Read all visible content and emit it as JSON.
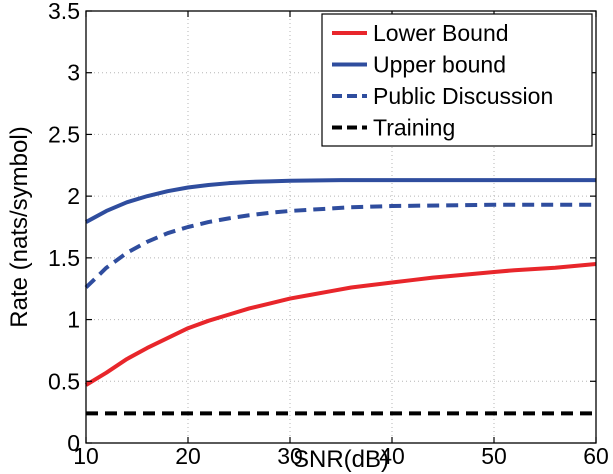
{
  "chart_data": {
    "type": "line",
    "xlabel": "SNR(dB)",
    "ylabel": "Rate (nats/symbol)",
    "xlim": [
      10,
      60
    ],
    "ylim": [
      0,
      3.5
    ],
    "xticks": [
      10,
      20,
      30,
      40,
      50,
      60
    ],
    "yticks": [
      0,
      0.5,
      1,
      1.5,
      2,
      2.5,
      3,
      3.5
    ],
    "xtick_labels": [
      "10",
      "20",
      "30",
      "40",
      "50",
      "60"
    ],
    "ytick_labels": [
      "0",
      "0.5",
      "1",
      "1.5",
      "2",
      "2.5",
      "3",
      "3.5"
    ],
    "grid": true,
    "legend_position": "top-right",
    "series": [
      {
        "name": "Lower Bound",
        "color": "#e8262b",
        "style": "solid",
        "x": [
          10,
          12,
          14,
          16,
          18,
          20,
          22,
          24,
          26,
          28,
          30,
          32,
          34,
          36,
          38,
          40,
          42,
          44,
          46,
          48,
          50,
          52,
          54,
          56,
          58,
          60
        ],
        "y": [
          0.47,
          0.57,
          0.68,
          0.77,
          0.85,
          0.93,
          0.99,
          1.04,
          1.09,
          1.13,
          1.17,
          1.2,
          1.23,
          1.26,
          1.28,
          1.3,
          1.32,
          1.34,
          1.355,
          1.37,
          1.385,
          1.4,
          1.41,
          1.42,
          1.435,
          1.45
        ]
      },
      {
        "name": "Upper bound",
        "color": "#2f4d9e",
        "style": "solid",
        "x": [
          10,
          12,
          14,
          16,
          18,
          20,
          22,
          24,
          26,
          28,
          30,
          35,
          40,
          45,
          50,
          55,
          60
        ],
        "y": [
          1.79,
          1.88,
          1.95,
          2.0,
          2.04,
          2.07,
          2.09,
          2.105,
          2.115,
          2.12,
          2.125,
          2.13,
          2.13,
          2.13,
          2.13,
          2.13,
          2.13
        ]
      },
      {
        "name": "Public Discussion",
        "color": "#2f4d9e",
        "style": "dashed",
        "x": [
          10,
          12,
          14,
          16,
          18,
          20,
          22,
          24,
          26,
          28,
          30,
          32,
          34,
          36,
          38,
          40,
          45,
          50,
          55,
          60
        ],
        "y": [
          1.26,
          1.42,
          1.54,
          1.63,
          1.7,
          1.75,
          1.79,
          1.82,
          1.845,
          1.865,
          1.88,
          1.89,
          1.9,
          1.91,
          1.915,
          1.92,
          1.925,
          1.93,
          1.93,
          1.93
        ]
      },
      {
        "name": "Training",
        "color": "#000000",
        "style": "dashed",
        "x": [
          10,
          60
        ],
        "y": [
          0.24,
          0.24
        ]
      }
    ]
  }
}
